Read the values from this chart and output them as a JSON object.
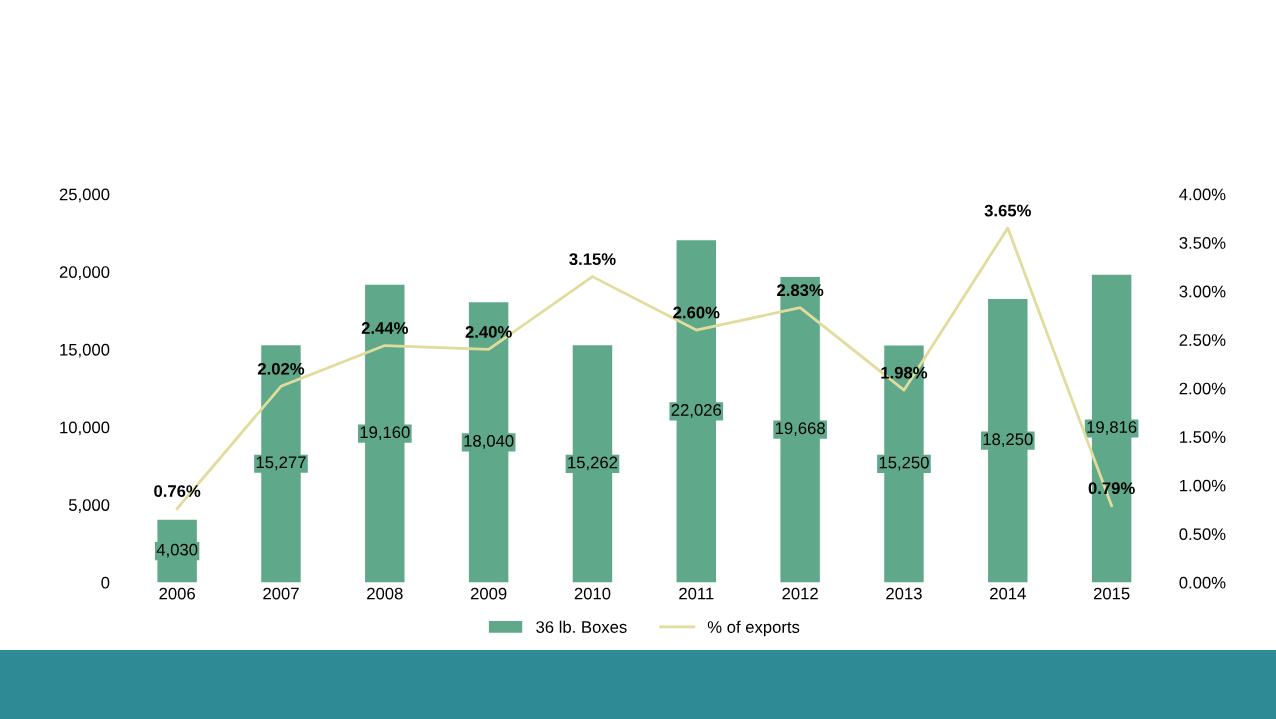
{
  "chart_data": {
    "type": "bar",
    "categories": [
      "2006",
      "2007",
      "2008",
      "2009",
      "2010",
      "2011",
      "2012",
      "2013",
      "2014",
      "2015"
    ],
    "series": [
      {
        "name": "36 lb. Boxes",
        "color": "#5fa889",
        "values": [
          4030,
          15277,
          19160,
          18040,
          15262,
          22026,
          19668,
          15250,
          18250,
          19816
        ],
        "value_labels": [
          "4,030",
          "15,277",
          "19,160",
          "18,040",
          "15,262",
          "22,026",
          "19,668",
          "15,250",
          "18,250",
          "19,816"
        ]
      },
      {
        "name": "% of exports",
        "type": "line",
        "axis": "y2",
        "color": "#e2dc9c",
        "values": [
          0.76,
          2.02,
          2.44,
          2.4,
          3.15,
          2.6,
          2.83,
          1.98,
          3.65,
          0.79
        ],
        "value_labels": [
          "0.76%",
          "2.02%",
          "2.44%",
          "2.40%",
          "3.15%",
          "2.60%",
          "2.83%",
          "1.98%",
          "3.65%",
          "0.79%"
        ]
      }
    ],
    "ylim": [
      0,
      25000
    ],
    "yticks": [
      {
        "value": 0,
        "label": "0"
      },
      {
        "value": 5000,
        "label": "5,000"
      },
      {
        "value": 10000,
        "label": "10,000"
      },
      {
        "value": 15000,
        "label": "15,000"
      },
      {
        "value": 20000,
        "label": "20,000"
      },
      {
        "value": 25000,
        "label": "25,000"
      }
    ],
    "y2lim": [
      0,
      4
    ],
    "y2ticks": [
      {
        "value": 0,
        "label": "0.00%"
      },
      {
        "value": 0.5,
        "label": "0.50%"
      },
      {
        "value": 1,
        "label": "1.00%"
      },
      {
        "value": 1.5,
        "label": "1.50%"
      },
      {
        "value": 2,
        "label": "2.00%"
      },
      {
        "value": 2.5,
        "label": "2.50%"
      },
      {
        "value": 3,
        "label": "3.00%"
      },
      {
        "value": 3.5,
        "label": "3.50%"
      },
      {
        "value": 4,
        "label": "4.00%"
      }
    ],
    "grid": false,
    "legend": "bottom"
  }
}
